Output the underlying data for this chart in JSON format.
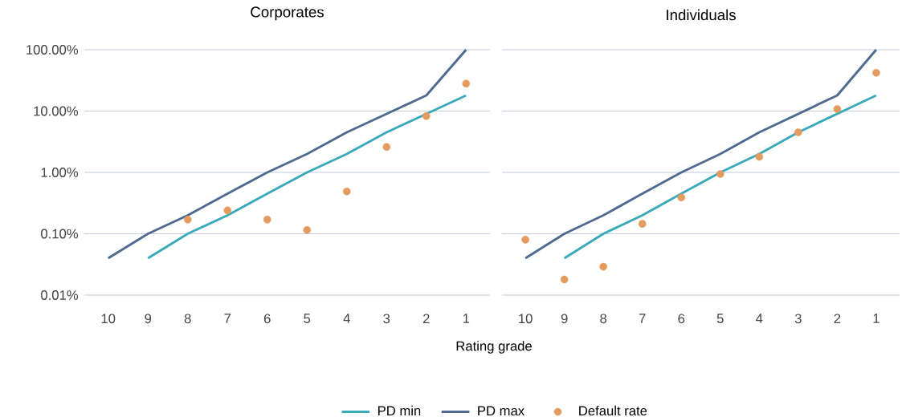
{
  "chart_data": [
    {
      "type": "line",
      "title": "Corporates",
      "xlabel": "Rating grade",
      "categories": [
        "10",
        "9",
        "8",
        "7",
        "6",
        "5",
        "4",
        "3",
        "2",
        "1"
      ],
      "series": [
        {
          "name": "PD min",
          "color": "#3aa9b9",
          "values": [
            null,
            0.04,
            0.1,
            0.2,
            0.45,
            1,
            2,
            4.5,
            9,
            18
          ]
        },
        {
          "name": "PD max",
          "color": "#4f6a8f",
          "values": [
            0.04,
            0.1,
            0.2,
            0.45,
            1,
            2,
            4.5,
            9,
            18,
            100
          ]
        },
        {
          "name": "Default rate",
          "type": "scatter",
          "color": "#e59a5e",
          "marker": "circle",
          "values": [
            null,
            null,
            0.17,
            0.24,
            0.17,
            0.115,
            0.49,
            2.6,
            8.3,
            28
          ]
        }
      ],
      "log": "y",
      "ylim": [
        0.01,
        100
      ],
      "yticks": [
        {
          "value": 0.01,
          "label": "0.01%"
        },
        {
          "value": 0.1,
          "label": "0.10%"
        },
        {
          "value": 1,
          "label": "1.00%"
        },
        {
          "value": 10,
          "label": "10.00%"
        },
        {
          "value": 100,
          "label": "100.00%"
        }
      ],
      "grid": "y",
      "legend": "bottom"
    },
    {
      "type": "line",
      "title": "Individuals",
      "categories": [
        "10",
        "9",
        "8",
        "7",
        "6",
        "5",
        "4",
        "3",
        "2",
        "1"
      ],
      "series": [
        {
          "color": "#3aa9b9",
          "values": [
            null,
            0.04,
            0.1,
            0.2,
            0.45,
            1,
            2,
            4.5,
            9,
            18
          ]
        },
        {
          "color": "#4f6a8f",
          "values": [
            0.04,
            0.1,
            0.2,
            0.45,
            1,
            2,
            4.5,
            9,
            18,
            100
          ]
        },
        {
          "type": "scatter",
          "color": "#e59a5e",
          "marker": "circle",
          "values": [
            0.08,
            0.018,
            0.029,
            0.145,
            0.39,
            0.94,
            1.8,
            4.5,
            10.8,
            42
          ]
        }
      ],
      "log": "y",
      "ylim": [
        0.01,
        100
      ],
      "yticks": [
        {
          "value": 0.01,
          "label": null
        },
        {
          "value": 0.1,
          "label": null
        },
        {
          "value": 1,
          "label": null
        },
        {
          "value": 10,
          "label": null
        },
        {
          "value": 100,
          "label": null
        }
      ],
      "grid": "y",
      "tick_labels": "x"
    }
  ]
}
